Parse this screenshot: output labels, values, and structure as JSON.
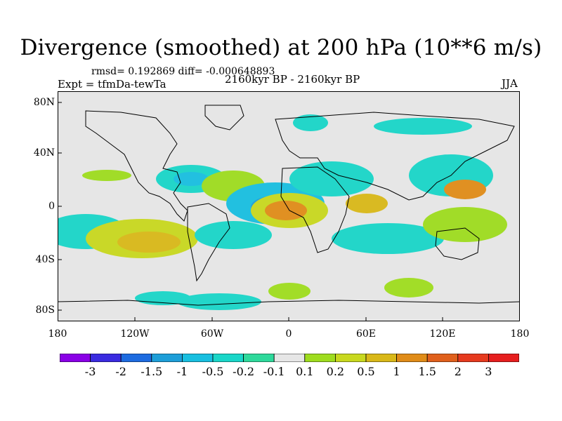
{
  "title": "Divergence (smoothed) at 200 hPa (10**6 m/s)",
  "stats": "rmsd= 0.192869  diff= -0.000648893",
  "experiment": "Expt = tfmDa-tewTa",
  "period": "2160kyr BP - 2160kyr BP",
  "season": "JJA",
  "lat_labels": [
    "80N",
    "40N",
    "0",
    "40S",
    "80S"
  ],
  "lon_labels": [
    "180",
    "120W",
    "60W",
    "0",
    "60E",
    "120E",
    "180"
  ],
  "colorbar": {
    "labels": [
      "-3",
      "-2",
      "-1.5",
      "-1",
      "-0.5",
      "-0.2",
      "-0.1",
      "0.1",
      "0.2",
      "0.5",
      "1",
      "1.5",
      "2",
      "3"
    ],
    "colors": [
      "#8a00e6",
      "#3a2be0",
      "#1d6be0",
      "#1d9ed8",
      "#18bfe0",
      "#19d6c8",
      "#2ed99b",
      "#e6e6e6",
      "#9edc1e",
      "#c8d81e",
      "#d9b818",
      "#e08c18",
      "#e0601c",
      "#e63a1e",
      "#e61e1e"
    ]
  },
  "map_colors": {
    "background": "#e6e6e6",
    "land_outline": "#000000"
  }
}
